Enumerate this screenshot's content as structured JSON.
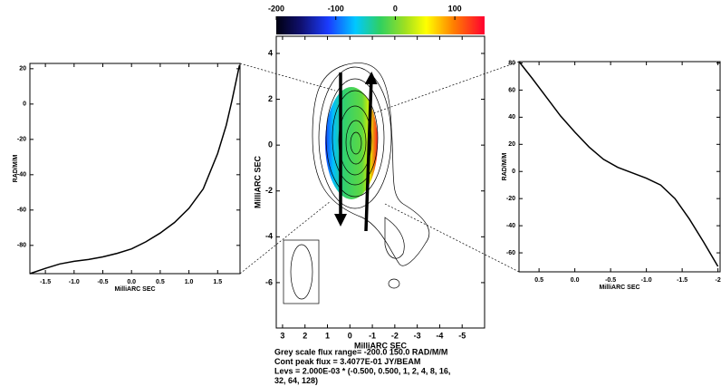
{
  "chart_data": [
    {
      "type": "line",
      "xlabel": "MilliARC SEC",
      "ylabel": "RAD/M/M",
      "color": "#000000",
      "x": [
        -1.77,
        -1.5,
        -1.25,
        -1.0,
        -0.75,
        -0.5,
        -0.25,
        0.0,
        0.25,
        0.5,
        0.75,
        1.0,
        1.25,
        1.5,
        1.65,
        1.75,
        1.88
      ],
      "values": [
        -96,
        -93,
        -90.5,
        -89,
        -88,
        -86.5,
        -84.5,
        -82,
        -78,
        -73,
        -67,
        -59,
        -48,
        -28,
        -12,
        2,
        22
      ],
      "xlim": [
        -1.77,
        1.89
      ],
      "ylim": [
        -96,
        23
      ],
      "xticks": [
        -1.5,
        {
          "value": -1,
          "label": "-1.0"
        },
        -0.5,
        {
          "value": 0,
          "label": "0.0"
        },
        0.5,
        {
          "value": 1,
          "label": "1.0"
        },
        1.5
      ],
      "yticks": [
        20,
        0,
        -20,
        -40,
        -60,
        -80
      ]
    },
    {
      "type": "contour",
      "xlabel": "MilliARC SEC",
      "ylabel": "MilliARC SEC",
      "xlim": [
        3.28,
        -6.0
      ],
      "ylim": [
        -7.98,
        4.75
      ],
      "xticks": [
        3,
        2,
        1,
        0,
        -1,
        -2,
        -3,
        -4,
        -5
      ],
      "yticks": [
        4,
        2,
        0,
        -2,
        -4,
        -6
      ],
      "colorbar": {
        "lim": [
          -200,
          150
        ],
        "ticks": [
          -200,
          -100,
          0,
          100
        ]
      },
      "notes": [
        "Grey scale flux range= -200.0 150.0 RAD/M/M",
        "Cont peak flux =  3.4077E-01 JY/BEAM",
        "Levs = 2.000E-03 * (-0.500, 0.500, 1, 2, 4, 8, 16,",
        "32, 64, 128)"
      ]
    },
    {
      "type": "line",
      "xlabel": "MilliARC SEC",
      "ylabel": "RAD/M/M",
      "color": "#000000",
      "x": [
        0.78,
        0.6,
        0.4,
        0.2,
        0.0,
        -0.2,
        -0.4,
        -0.6,
        -0.8,
        -1.0,
        -1.2,
        -1.4,
        -1.6,
        -1.8,
        -2.0
      ],
      "values": [
        81,
        69,
        55,
        41,
        29,
        18,
        9,
        3,
        -1,
        -5,
        -10,
        -20,
        -35,
        -52,
        -70
      ],
      "xlim": [
        0.78,
        -2.03
      ],
      "ylim": [
        -74,
        81
      ],
      "xticks": [
        0.5,
        {
          "value": 0,
          "label": "0.0"
        },
        -0.5,
        {
          "value": -1,
          "label": "-1.0"
        },
        -1.5,
        -2
      ],
      "yticks": [
        80,
        60,
        40,
        20,
        0,
        -20,
        -40,
        -60
      ]
    }
  ]
}
